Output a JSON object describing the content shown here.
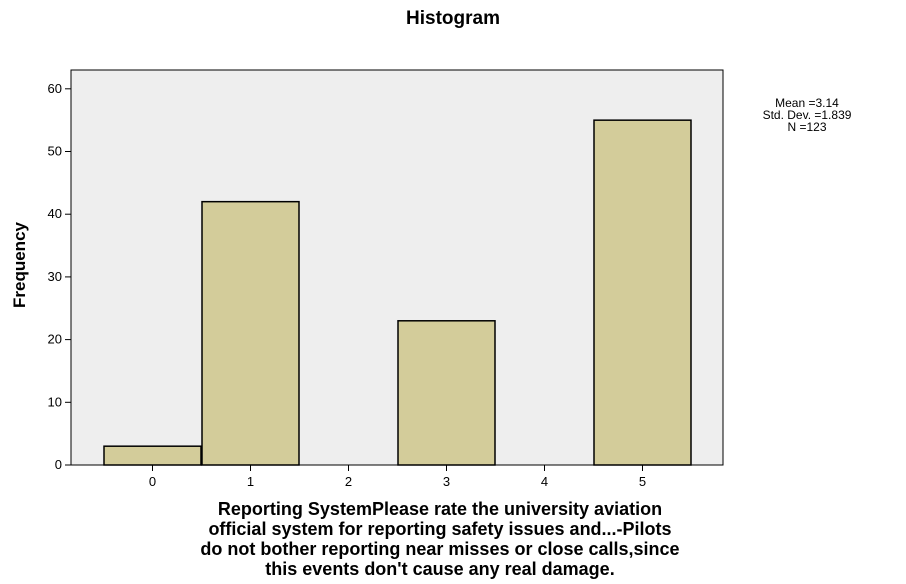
{
  "chart_data": {
    "type": "bar",
    "title": "Histogram",
    "ylabel": "Frequency",
    "xlabel_lines": [
      "Reporting SystemPlease rate the university aviation",
      "official system for reporting safety issues and...-Pilots",
      "do not bother reporting near misses or close calls,since",
      "this events don't cause any real damage."
    ],
    "categories": [
      "0",
      "1",
      "2",
      "3",
      "4",
      "5"
    ],
    "values": [
      3,
      42,
      0,
      23,
      0,
      55
    ],
    "ylim": [
      0,
      63
    ],
    "yticks": [
      0,
      10,
      20,
      30,
      40,
      50,
      60
    ],
    "grid": false,
    "stats": {
      "mean": "Mean =3.14",
      "std": "Std. Dev. =1.839",
      "n": "N =123"
    },
    "colors": {
      "bar_fill": "#d3cc9a",
      "bar_stroke": "#000000",
      "plot_background": "#eeeeee"
    }
  }
}
